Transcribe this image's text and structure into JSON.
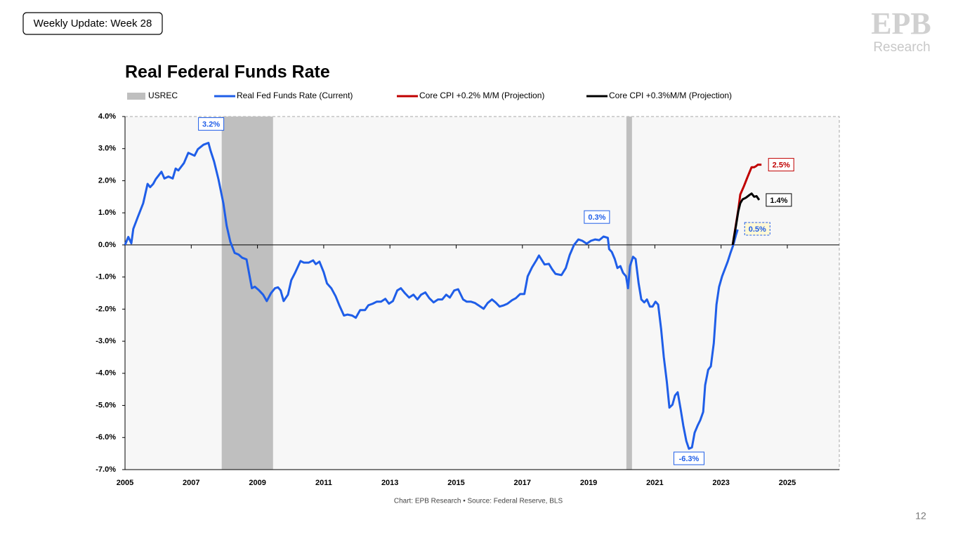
{
  "header": {
    "badge": "Weekly Update: Week 28",
    "logo": "EPB",
    "logo_sub": "Research"
  },
  "footer": {
    "source": "Chart: EPB Research  •  Source: Federal Reserve, BLS",
    "page": "12"
  },
  "chart_data": {
    "type": "line",
    "title": "Real Federal Funds Rate",
    "xlim": [
      2005,
      2026.57
    ],
    "xticks": [
      2005,
      2007,
      2009,
      2011,
      2013,
      2015,
      2017,
      2019,
      2021,
      2023,
      2025
    ],
    "ylim": [
      -7,
      4
    ],
    "yticks": [
      {
        "value": 4,
        "label": "4.0%"
      },
      {
        "value": 3,
        "label": "3.0%"
      },
      {
        "value": 2,
        "label": "2.0%"
      },
      {
        "value": 1,
        "label": "1.0%"
      },
      {
        "value": 0,
        "label": "0.0%"
      },
      {
        "value": -1,
        "label": "-1.0%"
      },
      {
        "value": -2,
        "label": "-2.0%"
      },
      {
        "value": -3,
        "label": "-3.0%"
      },
      {
        "value": -4,
        "label": "-4.0%"
      },
      {
        "value": -5,
        "label": "-5.0%"
      },
      {
        "value": -6,
        "label": "-6.0%"
      },
      {
        "value": -7,
        "label": "-7.0%"
      }
    ],
    "grid": false,
    "shading": {
      "name": "USREC",
      "color": "#bfbfbf",
      "periods": [
        [
          2007.92,
          2009.47
        ],
        [
          2020.14,
          2020.31
        ]
      ]
    },
    "series": [
      {
        "name": "Real Fed Funds Rate (Current)",
        "color": "#1f5ee8",
        "x": [
          2005.0,
          2005.1,
          2005.19,
          2005.25,
          2005.38,
          2005.55,
          2005.68,
          2005.76,
          2005.85,
          2005.93,
          2006.1,
          2006.19,
          2006.31,
          2006.44,
          2006.53,
          2006.61,
          2006.78,
          2006.91,
          2007.1,
          2007.2,
          2007.37,
          2007.52,
          2007.58,
          2007.69,
          2007.82,
          2007.97,
          2008.07,
          2008.18,
          2008.31,
          2008.43,
          2008.54,
          2008.67,
          2008.75,
          2008.83,
          2008.92,
          2009.05,
          2009.17,
          2009.28,
          2009.41,
          2009.53,
          2009.62,
          2009.7,
          2009.79,
          2009.92,
          2010.02,
          2010.13,
          2010.3,
          2010.4,
          2010.55,
          2010.68,
          2010.76,
          2010.87,
          2011.0,
          2011.1,
          2011.23,
          2011.36,
          2011.48,
          2011.61,
          2011.72,
          2011.86,
          2011.97,
          2012.1,
          2012.25,
          2012.35,
          2012.48,
          2012.6,
          2012.73,
          2012.86,
          2012.97,
          2013.09,
          2013.22,
          2013.33,
          2013.45,
          2013.58,
          2013.71,
          2013.83,
          2013.94,
          2014.07,
          2014.19,
          2014.32,
          2014.45,
          2014.58,
          2014.7,
          2014.81,
          2014.94,
          2015.06,
          2015.21,
          2015.32,
          2015.45,
          2015.57,
          2015.7,
          2015.83,
          2015.95,
          2016.08,
          2016.19,
          2016.31,
          2016.44,
          2016.55,
          2016.69,
          2016.8,
          2016.93,
          2017.06,
          2017.16,
          2017.29,
          2017.42,
          2017.5,
          2017.58,
          2017.67,
          2017.8,
          2017.9,
          2018.0,
          2018.18,
          2018.31,
          2018.43,
          2018.56,
          2018.69,
          2018.81,
          2018.94,
          2019.07,
          2019.2,
          2019.32,
          2019.45,
          2019.58,
          2019.62,
          2019.7,
          2019.79,
          2019.87,
          2019.96,
          2020.04,
          2020.13,
          2020.19,
          2020.25,
          2020.34,
          2020.42,
          2020.51,
          2020.59,
          2020.68,
          2020.76,
          2020.85,
          2020.93,
          2021.02,
          2021.1,
          2021.19,
          2021.27,
          2021.36,
          2021.44,
          2021.53,
          2021.61,
          2021.69,
          2021.78,
          2021.86,
          2021.95,
          2022.03,
          2022.12,
          2022.2,
          2022.29,
          2022.37,
          2022.46,
          2022.52,
          2022.61,
          2022.69,
          2022.78,
          2022.86,
          2022.94,
          2023.03,
          2023.11,
          2023.2,
          2023.28,
          2023.37,
          2023.45,
          2023.5
        ],
        "values": [
          0.0,
          0.25,
          0.05,
          0.5,
          0.85,
          1.3,
          1.9,
          1.8,
          1.9,
          2.05,
          2.28,
          2.07,
          2.13,
          2.07,
          2.38,
          2.32,
          2.55,
          2.87,
          2.78,
          2.98,
          3.12,
          3.18,
          2.95,
          2.6,
          2.05,
          1.3,
          0.6,
          0.1,
          -0.25,
          -0.3,
          -0.4,
          -0.45,
          -0.9,
          -1.35,
          -1.3,
          -1.42,
          -1.55,
          -1.75,
          -1.5,
          -1.35,
          -1.32,
          -1.42,
          -1.75,
          -1.55,
          -1.1,
          -0.88,
          -0.5,
          -0.55,
          -0.55,
          -0.48,
          -0.6,
          -0.52,
          -0.85,
          -1.2,
          -1.35,
          -1.6,
          -1.9,
          -2.2,
          -2.17,
          -2.2,
          -2.27,
          -2.03,
          -2.03,
          -1.88,
          -1.83,
          -1.77,
          -1.77,
          -1.68,
          -1.83,
          -1.75,
          -1.42,
          -1.35,
          -1.5,
          -1.64,
          -1.55,
          -1.7,
          -1.55,
          -1.48,
          -1.66,
          -1.79,
          -1.7,
          -1.7,
          -1.55,
          -1.64,
          -1.42,
          -1.38,
          -1.7,
          -1.77,
          -1.77,
          -1.81,
          -1.9,
          -1.99,
          -1.81,
          -1.7,
          -1.79,
          -1.92,
          -1.88,
          -1.83,
          -1.72,
          -1.66,
          -1.53,
          -1.53,
          -0.98,
          -0.7,
          -0.48,
          -0.33,
          -0.46,
          -0.61,
          -0.59,
          -0.76,
          -0.9,
          -0.94,
          -0.72,
          -0.31,
          0.0,
          0.17,
          0.13,
          0.04,
          0.13,
          0.17,
          0.15,
          0.26,
          0.22,
          -0.13,
          -0.22,
          -0.44,
          -0.72,
          -0.66,
          -0.87,
          -0.98,
          -1.35,
          -0.66,
          -0.37,
          -0.44,
          -1.2,
          -1.7,
          -1.79,
          -1.7,
          -1.92,
          -1.92,
          -1.77,
          -1.86,
          -2.62,
          -3.49,
          -4.26,
          -5.07,
          -4.98,
          -4.69,
          -4.59,
          -5.13,
          -5.63,
          -6.11,
          -6.35,
          -6.31,
          -5.85,
          -5.63,
          -5.46,
          -5.2,
          -4.37,
          -3.89,
          -3.78,
          -3.06,
          -1.86,
          -1.31,
          -0.98,
          -0.76,
          -0.52,
          -0.26,
          0.0,
          0.31,
          0.48
        ]
      },
      {
        "name": "Core CPI +0.2% M/M (Projection)",
        "color": "#c00000",
        "x": [
          2023.35,
          2023.45,
          2023.52,
          2023.58,
          2023.69,
          2023.8,
          2023.92,
          2024.0,
          2024.05,
          2024.11,
          2024.22
        ],
        "values": [
          0.0,
          0.65,
          1.1,
          1.57,
          1.83,
          2.12,
          2.42,
          2.42,
          2.45,
          2.5,
          2.5
        ]
      },
      {
        "name": "Core CPI +0.3%M/M (Projection)",
        "color": "#000000",
        "x": [
          2023.35,
          2023.45,
          2023.52,
          2023.58,
          2023.65,
          2023.75,
          2023.85,
          2023.92,
          2024.0,
          2024.07,
          2024.15
        ],
        "values": [
          0.0,
          0.6,
          1.05,
          1.3,
          1.42,
          1.47,
          1.55,
          1.6,
          1.5,
          1.52,
          1.4
        ]
      }
    ],
    "annotations": [
      {
        "text": "3.2%",
        "x": 2007.6,
        "value": 3.2,
        "color": "#1f5ee8",
        "fill": "#ffffff",
        "placement": "above"
      },
      {
        "text": "0.3%",
        "x": 2019.25,
        "value": 0.3,
        "color": "#1f5ee8",
        "fill": "#ffffff",
        "placement": "above"
      },
      {
        "text": "-6.3%",
        "x": 2022.03,
        "value": -6.3,
        "color": "#1f5ee8",
        "fill": "#ffffff",
        "placement": "below"
      },
      {
        "text": "0.5%",
        "x": 2023.5,
        "value": 0.5,
        "color": "#1f5ee8",
        "fill": "#fff8d6",
        "dashed": true,
        "placement": "right"
      },
      {
        "text": "2.5%",
        "x": 2024.22,
        "value": 2.5,
        "color": "#c00000",
        "fill": "#ffffff",
        "placement": "right"
      },
      {
        "text": "1.4%",
        "x": 2024.15,
        "value": 1.4,
        "color": "#000000",
        "fill": "#ffffff",
        "placement": "right"
      }
    ]
  }
}
